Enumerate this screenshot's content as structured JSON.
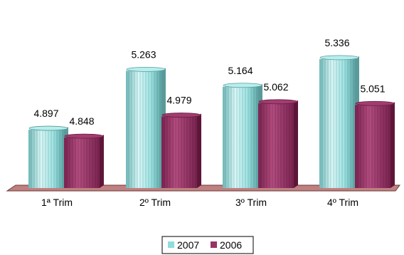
{
  "chart_data": {
    "type": "bar",
    "categories": [
      "1ª Trim",
      "2º Trim",
      "3º Trim",
      "4º Trim"
    ],
    "series": [
      {
        "name": "2007",
        "values": [
          4.897,
          5.263,
          5.164,
          5.336
        ],
        "color": "#8fdcdc"
      },
      {
        "name": "2006",
        "values": [
          4.848,
          4.979,
          5.062,
          5.051
        ],
        "color": "#993366"
      }
    ],
    "data_labels": [
      [
        "4.897",
        "5.263",
        "5.164",
        "5.336"
      ],
      [
        "4.848",
        "4.979",
        "5.062",
        "5.051"
      ]
    ],
    "title": "",
    "xlabel": "",
    "ylabel": "",
    "legend": "bottom-center",
    "style": "3d-cylinder",
    "grid": false,
    "floor_color": "#c08080"
  }
}
